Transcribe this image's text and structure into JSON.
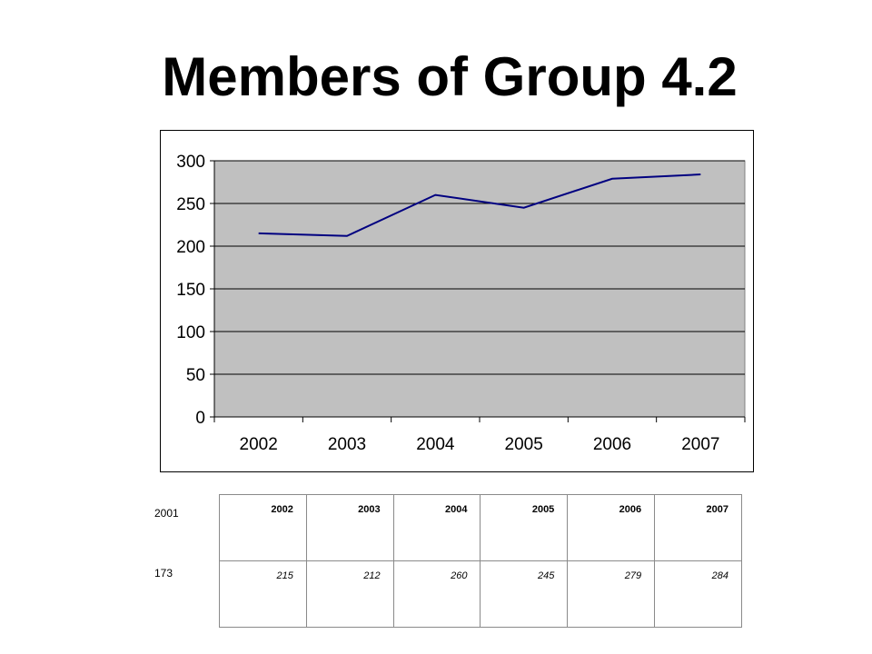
{
  "title": "Members of Group 4.2",
  "chart_data": {
    "type": "line",
    "title": "",
    "xlabel": "",
    "ylabel": "",
    "categories": [
      "2002",
      "2003",
      "2004",
      "2005",
      "2006",
      "2007"
    ],
    "series": [
      {
        "values": [
          215,
          212,
          260,
          245,
          279,
          284
        ],
        "color": "#000080"
      }
    ],
    "ylim": [
      0,
      300
    ],
    "yticks": [
      0,
      50,
      100,
      150,
      200,
      250,
      300
    ],
    "grid": true,
    "legend": "none",
    "plot_background": "#c0c0c0"
  },
  "side_table": {
    "year": "2001",
    "value": "173"
  },
  "table": {
    "headers": [
      "2002",
      "2003",
      "2004",
      "2005",
      "2006",
      "2007"
    ],
    "values": [
      "215",
      "212",
      "260",
      "245",
      "279",
      "284"
    ]
  }
}
